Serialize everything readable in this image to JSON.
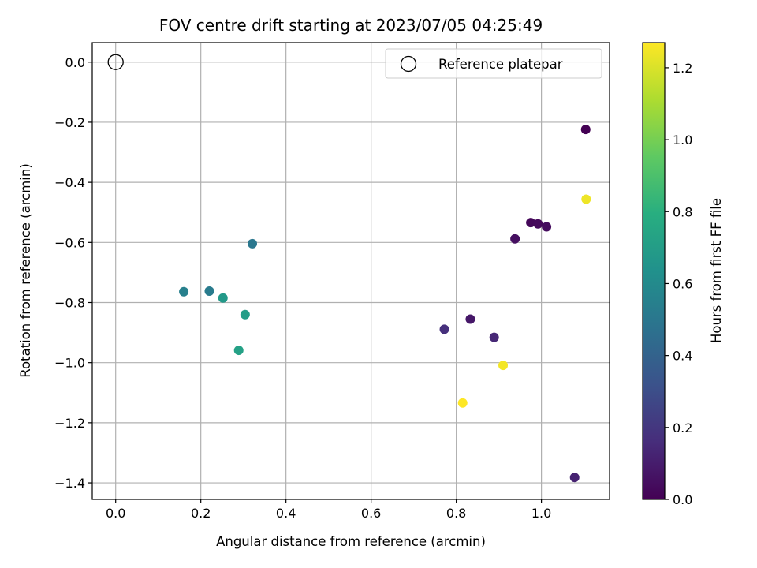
{
  "chart_data": {
    "type": "scatter",
    "title": "FOV centre drift starting at 2023/07/05 04:25:49",
    "xlabel": "Angular distance from reference (arcmin)",
    "ylabel": "Rotation from reference (arcmin)",
    "xlim": [
      -0.055,
      1.16
    ],
    "ylim": [
      -1.455,
      0.065
    ],
    "x_ticks": [
      0.0,
      0.2,
      0.4,
      0.6,
      0.8,
      1.0
    ],
    "x_tick_labels": [
      "0.0",
      "0.2",
      "0.4",
      "0.6",
      "0.8",
      "1.0"
    ],
    "y_ticks": [
      0.0,
      -0.2,
      -0.4,
      -0.6,
      -0.8,
      -1.0,
      -1.2,
      -1.4
    ],
    "y_tick_labels": [
      "0.0",
      "−0.2",
      "−0.4",
      "−0.6",
      "−0.8",
      "−1.0",
      "−1.2",
      "−1.4"
    ],
    "grid": true,
    "legend": {
      "position": "top-right",
      "entries": [
        {
          "label": "Reference platepar",
          "marker": "open-circle"
        }
      ]
    },
    "reference_point": {
      "x": 0.0,
      "y": 0.0
    },
    "colorbar": {
      "label": "Hours from first FF file",
      "colormap": "viridis",
      "range": [
        0.0,
        1.27
      ],
      "ticks": [
        0.0,
        0.2,
        0.4,
        0.6,
        0.8,
        1.0,
        1.2
      ],
      "tick_labels": [
        "0.0",
        "0.2",
        "0.4",
        "0.6",
        "0.8",
        "1.0",
        "1.2"
      ]
    },
    "points": [
      {
        "x": 1.104,
        "y": -0.224,
        "hours": 0.0
      },
      {
        "x": 0.975,
        "y": -0.534,
        "hours": 0.02
      },
      {
        "x": 0.992,
        "y": -0.538,
        "hours": 0.03
      },
      {
        "x": 1.012,
        "y": -0.548,
        "hours": 0.04
      },
      {
        "x": 0.938,
        "y": -0.588,
        "hours": 0.05
      },
      {
        "x": 0.833,
        "y": -0.855,
        "hours": 0.08
      },
      {
        "x": 1.078,
        "y": -1.382,
        "hours": 0.12
      },
      {
        "x": 0.889,
        "y": -0.916,
        "hours": 0.14
      },
      {
        "x": 0.772,
        "y": -0.889,
        "hours": 0.17
      },
      {
        "x": 0.321,
        "y": -0.604,
        "hours": 0.5
      },
      {
        "x": 0.22,
        "y": -0.762,
        "hours": 0.52
      },
      {
        "x": 0.16,
        "y": -0.764,
        "hours": 0.55
      },
      {
        "x": 0.252,
        "y": -0.785,
        "hours": 0.68
      },
      {
        "x": 0.304,
        "y": -0.84,
        "hours": 0.7
      },
      {
        "x": 0.289,
        "y": -0.959,
        "hours": 0.72
      },
      {
        "x": 1.105,
        "y": -0.456,
        "hours": 1.24
      },
      {
        "x": 0.91,
        "y": -1.009,
        "hours": 1.25
      },
      {
        "x": 0.815,
        "y": -1.134,
        "hours": 1.27
      }
    ]
  }
}
